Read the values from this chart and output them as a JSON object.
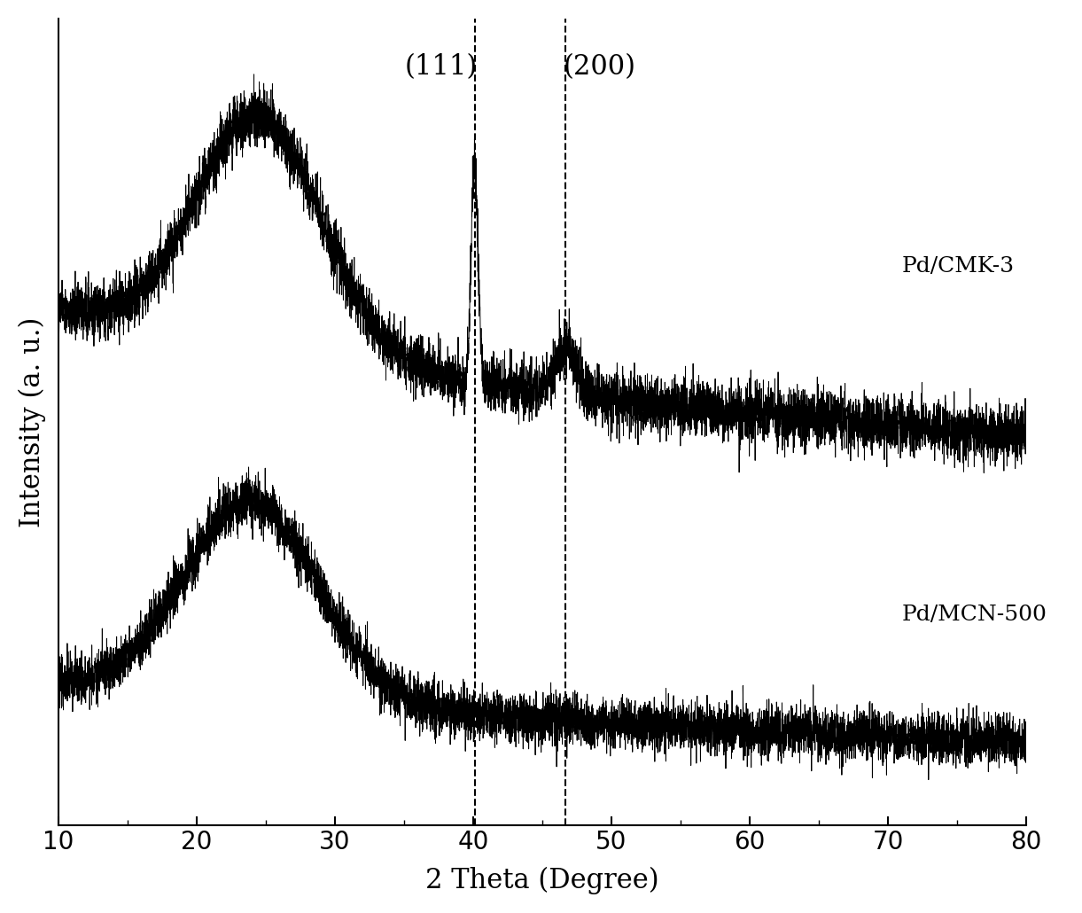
{
  "xlabel": "2 Theta (Degree)",
  "ylabel": "Intensity (a. u.)",
  "xmin": 10,
  "xmax": 80,
  "xticks": [
    10,
    20,
    30,
    40,
    50,
    60,
    70,
    80
  ],
  "dashed_line_111": 40.1,
  "dashed_line_200": 46.7,
  "label_111": "(111)",
  "label_200": "(200)",
  "label_top": "Pd/CMK-3",
  "label_bottom": "Pd/MCN-500",
  "background_color": "#ffffff",
  "line_color": "#000000",
  "xlabel_fontsize": 22,
  "ylabel_fontsize": 22,
  "tick_fontsize": 20,
  "annotation_fontsize": 22,
  "curve_label_fontsize": 18
}
